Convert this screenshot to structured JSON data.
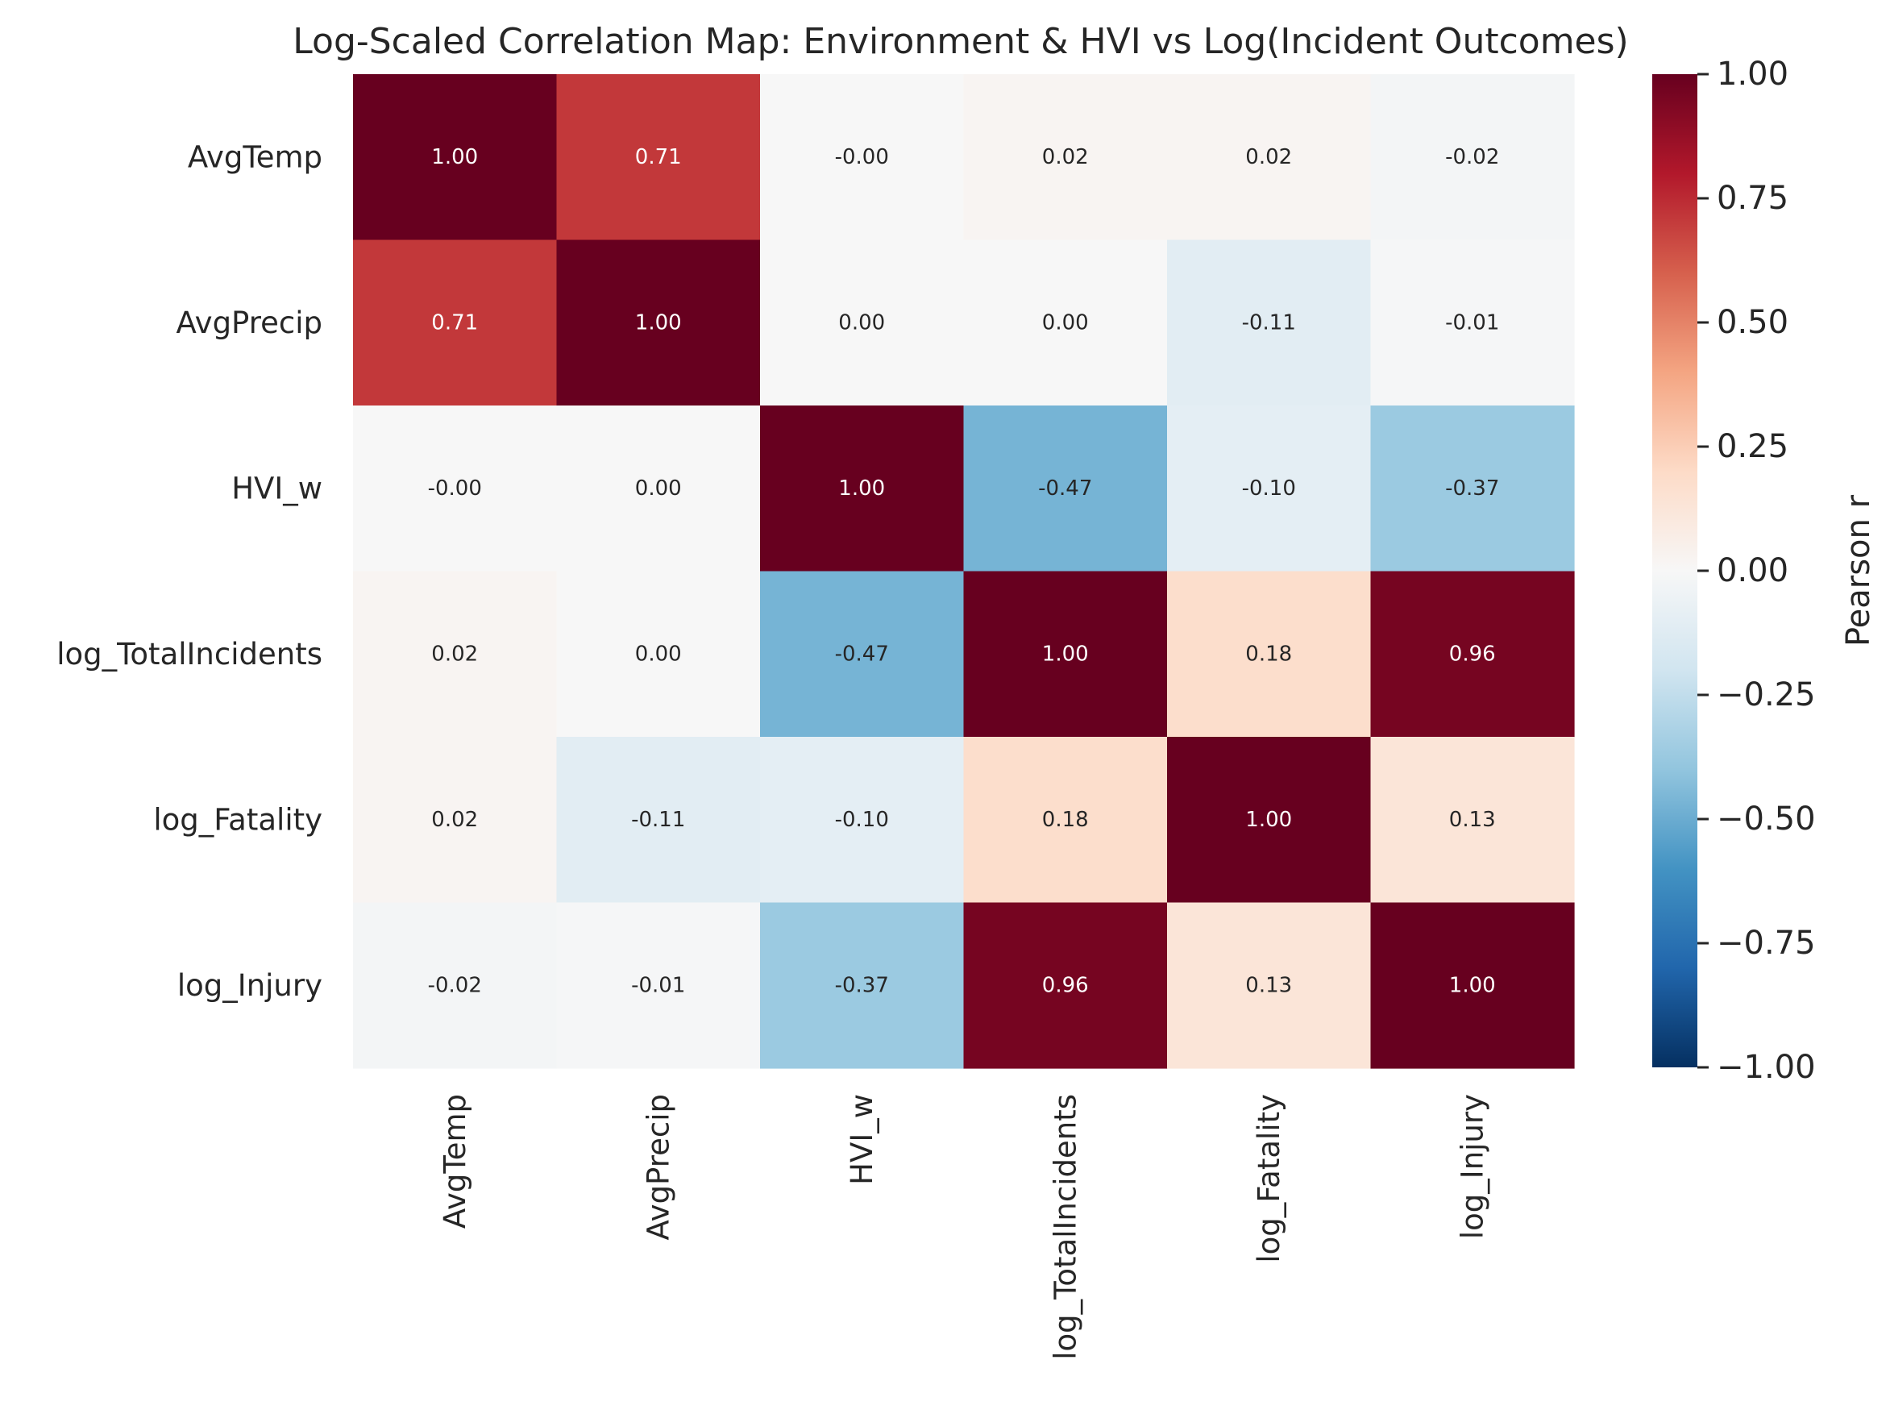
{
  "chart_data": {
    "type": "heatmap",
    "title": "Log-Scaled Correlation Map: Environment & HVI vs Log(Incident Outcomes)",
    "rows": [
      "AvgTemp",
      "AvgPrecip",
      "HVI_w",
      "log_TotalIncidents",
      "log_Fatality",
      "log_Injury"
    ],
    "columns": [
      "AvgTemp",
      "AvgPrecip",
      "HVI_w",
      "log_TotalIncidents",
      "log_Fatality",
      "log_Injury"
    ],
    "values": [
      [
        1.0,
        0.71,
        -0.0,
        0.02,
        0.02,
        -0.02
      ],
      [
        0.71,
        1.0,
        0.0,
        0.0,
        -0.11,
        -0.01
      ],
      [
        -0.0,
        0.0,
        1.0,
        -0.47,
        -0.1,
        -0.37
      ],
      [
        0.02,
        0.0,
        -0.47,
        1.0,
        0.18,
        0.96
      ],
      [
        0.02,
        -0.11,
        -0.1,
        0.18,
        1.0,
        0.13
      ],
      [
        -0.02,
        -0.01,
        -0.37,
        0.96,
        0.13,
        1.0
      ]
    ],
    "labels": [
      [
        "1.00",
        "0.71",
        "-0.00",
        "0.02",
        "0.02",
        "-0.02"
      ],
      [
        "0.71",
        "1.00",
        "0.00",
        "0.00",
        "-0.11",
        "-0.01"
      ],
      [
        "-0.00",
        "0.00",
        "1.00",
        "-0.47",
        "-0.10",
        "-0.37"
      ],
      [
        "0.02",
        "0.00",
        "-0.47",
        "1.00",
        "0.18",
        "0.96"
      ],
      [
        "0.02",
        "-0.11",
        "-0.10",
        "0.18",
        "1.00",
        "0.13"
      ],
      [
        "-0.02",
        "-0.01",
        "-0.37",
        "0.96",
        "0.13",
        "1.00"
      ]
    ],
    "colorbar": {
      "label": "Pearson r",
      "range": [
        -1.0,
        1.0
      ],
      "ticks": [
        1.0,
        0.75,
        0.5,
        0.25,
        0.0,
        -0.25,
        -0.5,
        -0.75,
        -1.0
      ],
      "tick_labels": [
        "1.00",
        "0.75",
        "0.50",
        "0.25",
        "0.00",
        "−0.25",
        "−0.50",
        "−0.75",
        "−1.00"
      ],
      "colormap": "RdBu_r",
      "placement": "right"
    },
    "xtick_rotation": "vertical",
    "grid": false
  }
}
